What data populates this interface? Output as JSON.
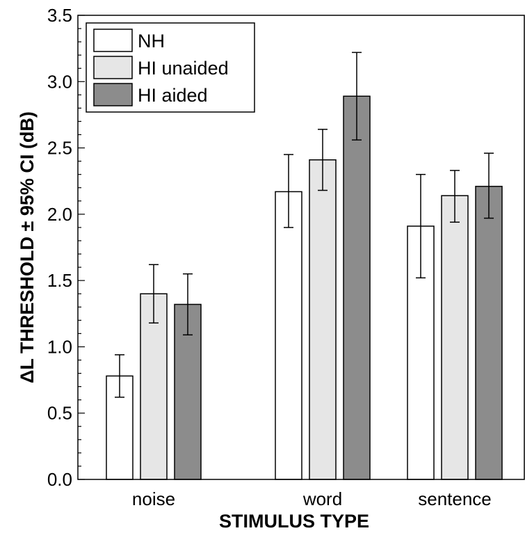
{
  "chart_data": {
    "type": "bar",
    "title": "",
    "xlabel": "STIMULUS TYPE",
    "ylabel": "ΔL THRESHOLD ± 95% CI (dB)",
    "ylim": [
      0,
      3.5
    ],
    "yticks": [
      "0.0",
      "0.5",
      "1.0",
      "1.5",
      "2.0",
      "2.5",
      "3.0",
      "3.5"
    ],
    "categories": [
      "noise",
      "word",
      "sentence"
    ],
    "series": [
      {
        "name": "NH",
        "color": "#ffffff",
        "values": [
          0.78,
          2.17,
          1.91
        ],
        "ci_low": [
          0.62,
          1.9,
          1.52
        ],
        "ci_high": [
          0.94,
          2.45,
          2.3
        ]
      },
      {
        "name": "HI unaided",
        "color": "#e6e6e6",
        "values": [
          1.4,
          2.41,
          2.14
        ],
        "ci_low": [
          1.18,
          2.18,
          1.94
        ],
        "ci_high": [
          1.62,
          2.64,
          2.33
        ]
      },
      {
        "name": "HI aided",
        "color": "#8c8c8c",
        "values": [
          1.32,
          2.89,
          2.21
        ],
        "ci_low": [
          1.09,
          2.56,
          1.97
        ],
        "ci_high": [
          1.55,
          3.22,
          2.46
        ]
      }
    ],
    "legend_position": "top-left",
    "grid": false
  }
}
